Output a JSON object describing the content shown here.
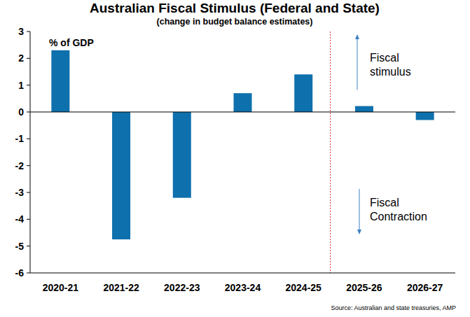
{
  "chart_data": {
    "type": "bar",
    "title": "Australian Fiscal Stimulus (Federal and State)",
    "subtitle": "(change in budget balance estimates)",
    "y_label": "% of GDP",
    "categories": [
      "2020-21",
      "2021-22",
      "2022-23",
      "2023-24",
      "2024-25",
      "2025-26",
      "2026-27"
    ],
    "values": [
      2.3,
      -4.75,
      -3.2,
      0.7,
      1.4,
      0.22,
      -0.3
    ],
    "color": "#0e70ad",
    "ylim": [
      -6,
      3
    ],
    "yticks": [
      -6,
      -5,
      -4,
      -3,
      -2,
      -1,
      0,
      1,
      2,
      3
    ],
    "grid": false,
    "annotations": [
      "Fiscal stimulus",
      "Fiscal Contraction"
    ],
    "source": "Source: Australian and state treasuries, AMP"
  }
}
